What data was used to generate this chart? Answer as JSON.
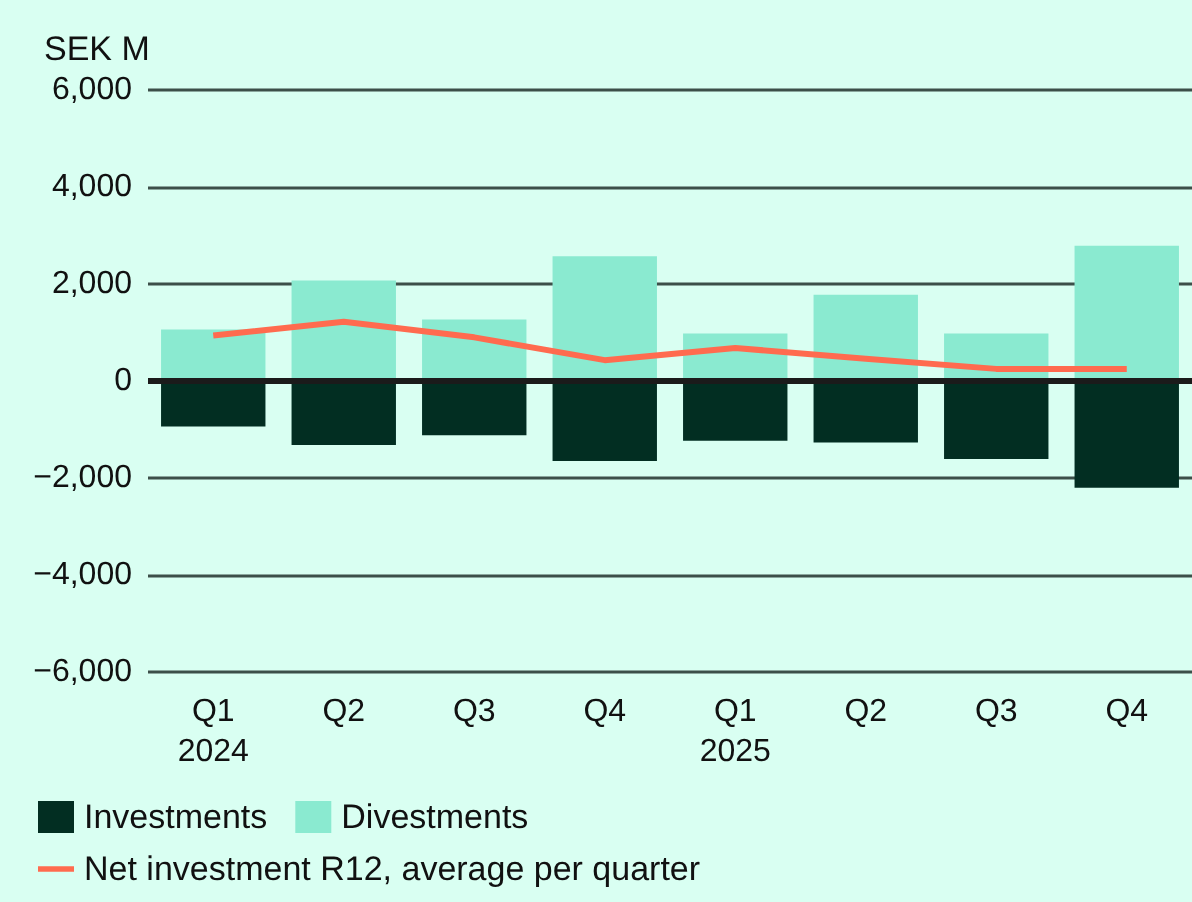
{
  "chart_data": {
    "type": "bar",
    "ylabel": "SEK M",
    "categories": [
      "Q1\n2024",
      "Q2",
      "Q3",
      "Q4",
      "Q1\n2025",
      "Q2",
      "Q3",
      "Q4"
    ],
    "stacked": true,
    "series": [
      {
        "name": "Investments",
        "color": "#022e22",
        "values": [
          -940,
          -1320,
          -1120,
          -1650,
          -1230,
          -1270,
          -1610,
          -2200
        ]
      },
      {
        "name": "Divestments",
        "color": "#8aead0",
        "values": [
          1060,
          2070,
          1270,
          2570,
          980,
          1780,
          980,
          2790
        ]
      },
      {
        "name": "Net investment R12, average per quarter",
        "type": "line",
        "color": "#ff6b4f",
        "values": [
          940,
          1220,
          900,
          430,
          680,
          460,
          250,
          250
        ]
      }
    ],
    "ylim": [
      -6000,
      6000
    ],
    "yticks": [
      {
        "value": -6000,
        "label": "−6,000"
      },
      {
        "value": -4000,
        "label": "−4,000"
      },
      {
        "value": -2000,
        "label": "−2,000"
      },
      0,
      {
        "value": 2000,
        "label": "2,000"
      },
      {
        "value": 4000,
        "label": "4,000"
      },
      {
        "value": 6000,
        "label": "6,000"
      }
    ],
    "grid": "y",
    "legend": "bottom",
    "marker": "none"
  }
}
